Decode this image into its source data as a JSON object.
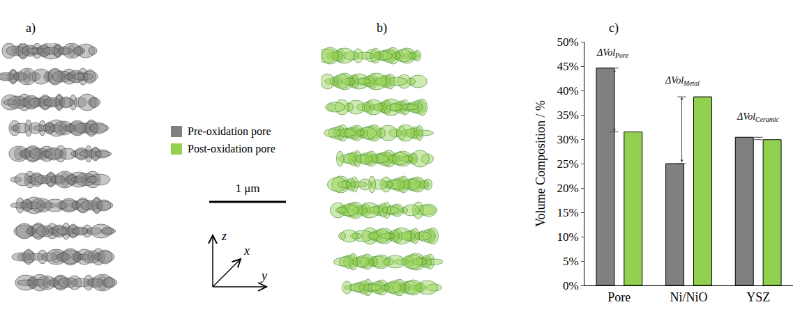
{
  "panel_labels": [
    "a)",
    "b)",
    "c)"
  ],
  "scale_bar": "1 μm",
  "axes_labels": {
    "z": "z",
    "x": "x",
    "y": "y"
  },
  "chart_data": {
    "type": "bar",
    "ylabel": "Volume Composition / %",
    "categories": [
      "Pore",
      "Ni/NiO",
      "YSZ"
    ],
    "series": [
      {
        "name": "Pre-oxidation pore",
        "color": "#808080",
        "values": [
          44.6,
          25.0,
          30.4
        ]
      },
      {
        "name": "Post-oxidation pore",
        "color": "#92d050",
        "values": [
          31.5,
          38.7,
          29.9
        ]
      }
    ],
    "ylim": [
      0,
      50
    ],
    "yticks": [
      {
        "value": 0,
        "label": "0%"
      },
      {
        "value": 5,
        "label": "5%"
      },
      {
        "value": 10,
        "label": "10%"
      },
      {
        "value": 15,
        "label": "15%"
      },
      {
        "value": 20,
        "label": "20%"
      },
      {
        "value": 25,
        "label": "25%"
      },
      {
        "value": 30,
        "label": "30%"
      },
      {
        "value": 35,
        "label": "35%"
      },
      {
        "value": 40,
        "label": "40%"
      },
      {
        "value": 45,
        "label": "45%"
      },
      {
        "value": 50,
        "label": "50%"
      }
    ],
    "grid": false,
    "annotations": [
      {
        "category": "Pore",
        "text": "ΔVol",
        "subscript": "Pore"
      },
      {
        "category": "Ni/NiO",
        "text": "ΔVol",
        "subscript": "Metal"
      },
      {
        "category": "YSZ",
        "text": "ΔVol",
        "subscript": "Ceramic"
      }
    ]
  }
}
